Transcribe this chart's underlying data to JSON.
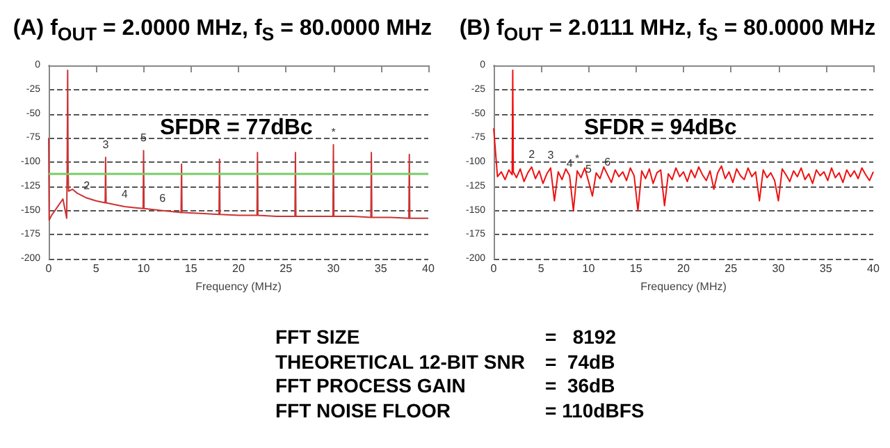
{
  "chart_data": [
    {
      "type": "line",
      "title": "(A) f$_{OUT}$ = 2.0000 MHz, f$_{S}$ = 80.0000 MHz",
      "xlabel": "Frequency (MHz)",
      "xlim": [
        0,
        40
      ],
      "xticks": [
        0,
        5,
        10,
        15,
        20,
        25,
        30,
        35,
        40
      ],
      "ylim": [
        -200,
        0
      ],
      "yticks": [
        0,
        -25,
        -50,
        -75,
        -100,
        -125,
        -150,
        -175,
        -200
      ],
      "grid": "y",
      "marker": "none",
      "series": [
        {
          "color": "#cc3333",
          "x": [
            0,
            0.05,
            0.3,
            0.8,
            1.5,
            1.9,
            1.95,
            2,
            2.05,
            2.1,
            2.5,
            3,
            4,
            5,
            5.95,
            6,
            6.05,
            7,
            8,
            9,
            9.95,
            10,
            10.05,
            12,
            13.95,
            14,
            14.05,
            16,
            17.95,
            18,
            18.05,
            20,
            21.95,
            22,
            22.05,
            24,
            25.95,
            26,
            26.05,
            28,
            29.95,
            30,
            30.05,
            32,
            33.95,
            34,
            34.05,
            36,
            37.95,
            38,
            38.05,
            40
          ],
          "values": [
            -75,
            -160,
            -155,
            -148,
            -138,
            -158,
            -100,
            -5,
            -110,
            -130,
            -128,
            -132,
            -137,
            -140,
            -142,
            -95,
            -142,
            -144,
            -146,
            -147,
            -148,
            -88,
            -148,
            -150,
            -152,
            -102,
            -152,
            -153,
            -154,
            -97,
            -154,
            -155,
            -155,
            -90,
            -155,
            -156,
            -156,
            -90,
            -156,
            -156,
            -156,
            -82,
            -156,
            -156,
            -157,
            -90,
            -157,
            -157,
            -158,
            -92,
            -158,
            -158
          ]
        }
      ],
      "ref_lines": [
        {
          "axis": "y",
          "value": -112,
          "color": "#77cc66"
        }
      ],
      "annotations": [
        "SFDR = 77dBc",
        {
          "text": "2",
          "x": 4,
          "y": -137
        },
        {
          "text": "3",
          "x": 6,
          "y": -95
        },
        {
          "text": "4",
          "x": 8,
          "y": -146
        },
        {
          "text": "5",
          "x": 10,
          "y": -88
        },
        {
          "text": "6",
          "x": 12,
          "y": -150
        },
        {
          "text": "*",
          "x": 30,
          "y": -82
        }
      ]
    },
    {
      "type": "line",
      "title": "(B) f$_{OUT}$ = 2.0111 MHz, f$_{S}$ = 80.0000 MHz",
      "xlabel": "Frequency (MHz)",
      "xlim": [
        0,
        40
      ],
      "xticks": [
        0,
        5,
        10,
        15,
        20,
        25,
        30,
        35,
        40
      ],
      "ylim": [
        -200,
        0
      ],
      "yticks": [
        0,
        -25,
        -50,
        -75,
        -100,
        -125,
        -150,
        -175,
        -200
      ],
      "grid": "y",
      "marker": "none",
      "series": [
        {
          "color": "#ee1111",
          "x": [
            0,
            0.4,
            0.8,
            1.2,
            1.6,
            1.95,
            2.01,
            2.07,
            2.4,
            2.8,
            3.2,
            3.6,
            4,
            4.4,
            4.8,
            5.2,
            5.6,
            6,
            6.4,
            6.8,
            7.2,
            7.6,
            8,
            8.4,
            8.8,
            9.2,
            9.6,
            10,
            10.4,
            10.8,
            11.2,
            11.6,
            12,
            12.4,
            12.8,
            13.2,
            13.6,
            14,
            14.4,
            14.8,
            15.2,
            15.6,
            16,
            16.4,
            16.8,
            17.2,
            17.6,
            18,
            18.4,
            18.8,
            19.2,
            19.6,
            20,
            20.4,
            20.8,
            21.2,
            21.6,
            22,
            22.4,
            22.8,
            23.2,
            23.6,
            24,
            24.4,
            24.8,
            25.2,
            25.6,
            26,
            26.4,
            26.8,
            27.2,
            27.6,
            28,
            28.4,
            28.8,
            29.2,
            29.6,
            30,
            30.4,
            30.8,
            31.2,
            31.6,
            32,
            32.4,
            32.8,
            33.2,
            33.6,
            34,
            34.4,
            34.8,
            35.2,
            35.6,
            36,
            36.4,
            36.8,
            37.2,
            37.6,
            38,
            38.4,
            38.8,
            39.2,
            39.6,
            40
          ],
          "values": [
            -65,
            -115,
            -110,
            -118,
            -108,
            -113,
            -5,
            -110,
            -116,
            -107,
            -120,
            -111,
            -105,
            -117,
            -109,
            -122,
            -112,
            -106,
            -140,
            -110,
            -118,
            -107,
            -114,
            -150,
            -109,
            -116,
            -106,
            -120,
            -135,
            -111,
            -117,
            -105,
            -113,
            -121,
            -108,
            -115,
            -110,
            -119,
            -106,
            -114,
            -150,
            -109,
            -117,
            -107,
            -122,
            -111,
            -108,
            -145,
            -112,
            -118,
            -106,
            -115,
            -110,
            -120,
            -108,
            -116,
            -105,
            -113,
            -119,
            -109,
            -128,
            -111,
            -104,
            -117,
            -110,
            -121,
            -107,
            -114,
            -118,
            -106,
            -115,
            -110,
            -140,
            -108,
            -116,
            -111,
            -119,
            -140,
            -107,
            -113,
            -120,
            -109,
            -115,
            -106,
            -118,
            -112,
            -122,
            -108,
            -114,
            -110,
            -119,
            -106,
            -116,
            -111,
            -121,
            -108,
            -115,
            -109,
            -117,
            -106,
            -113,
            -119,
            -110
          ]
        }
      ],
      "annotations": [
        "SFDR = 94dBc",
        {
          "text": "2",
          "x": 4,
          "y": -105
        },
        {
          "text": "3",
          "x": 6,
          "y": -106
        },
        {
          "text": "4",
          "x": 8,
          "y": -114
        },
        {
          "text": "*",
          "x": 8.8,
          "y": -109
        },
        {
          "text": "5",
          "x": 10,
          "y": -120
        },
        {
          "text": "6",
          "x": 12,
          "y": -113
        }
      ]
    },
    {
      "type": "other",
      "annotations": [
        "FFT SIZE",
        "=   8192",
        "THEORETICAL 12-BIT SNR",
        "=  74dB",
        "FFT PROCESS GAIN",
        "=  36dB",
        "FFT NOISE FLOOR",
        "= 110dBFS"
      ]
    }
  ]
}
